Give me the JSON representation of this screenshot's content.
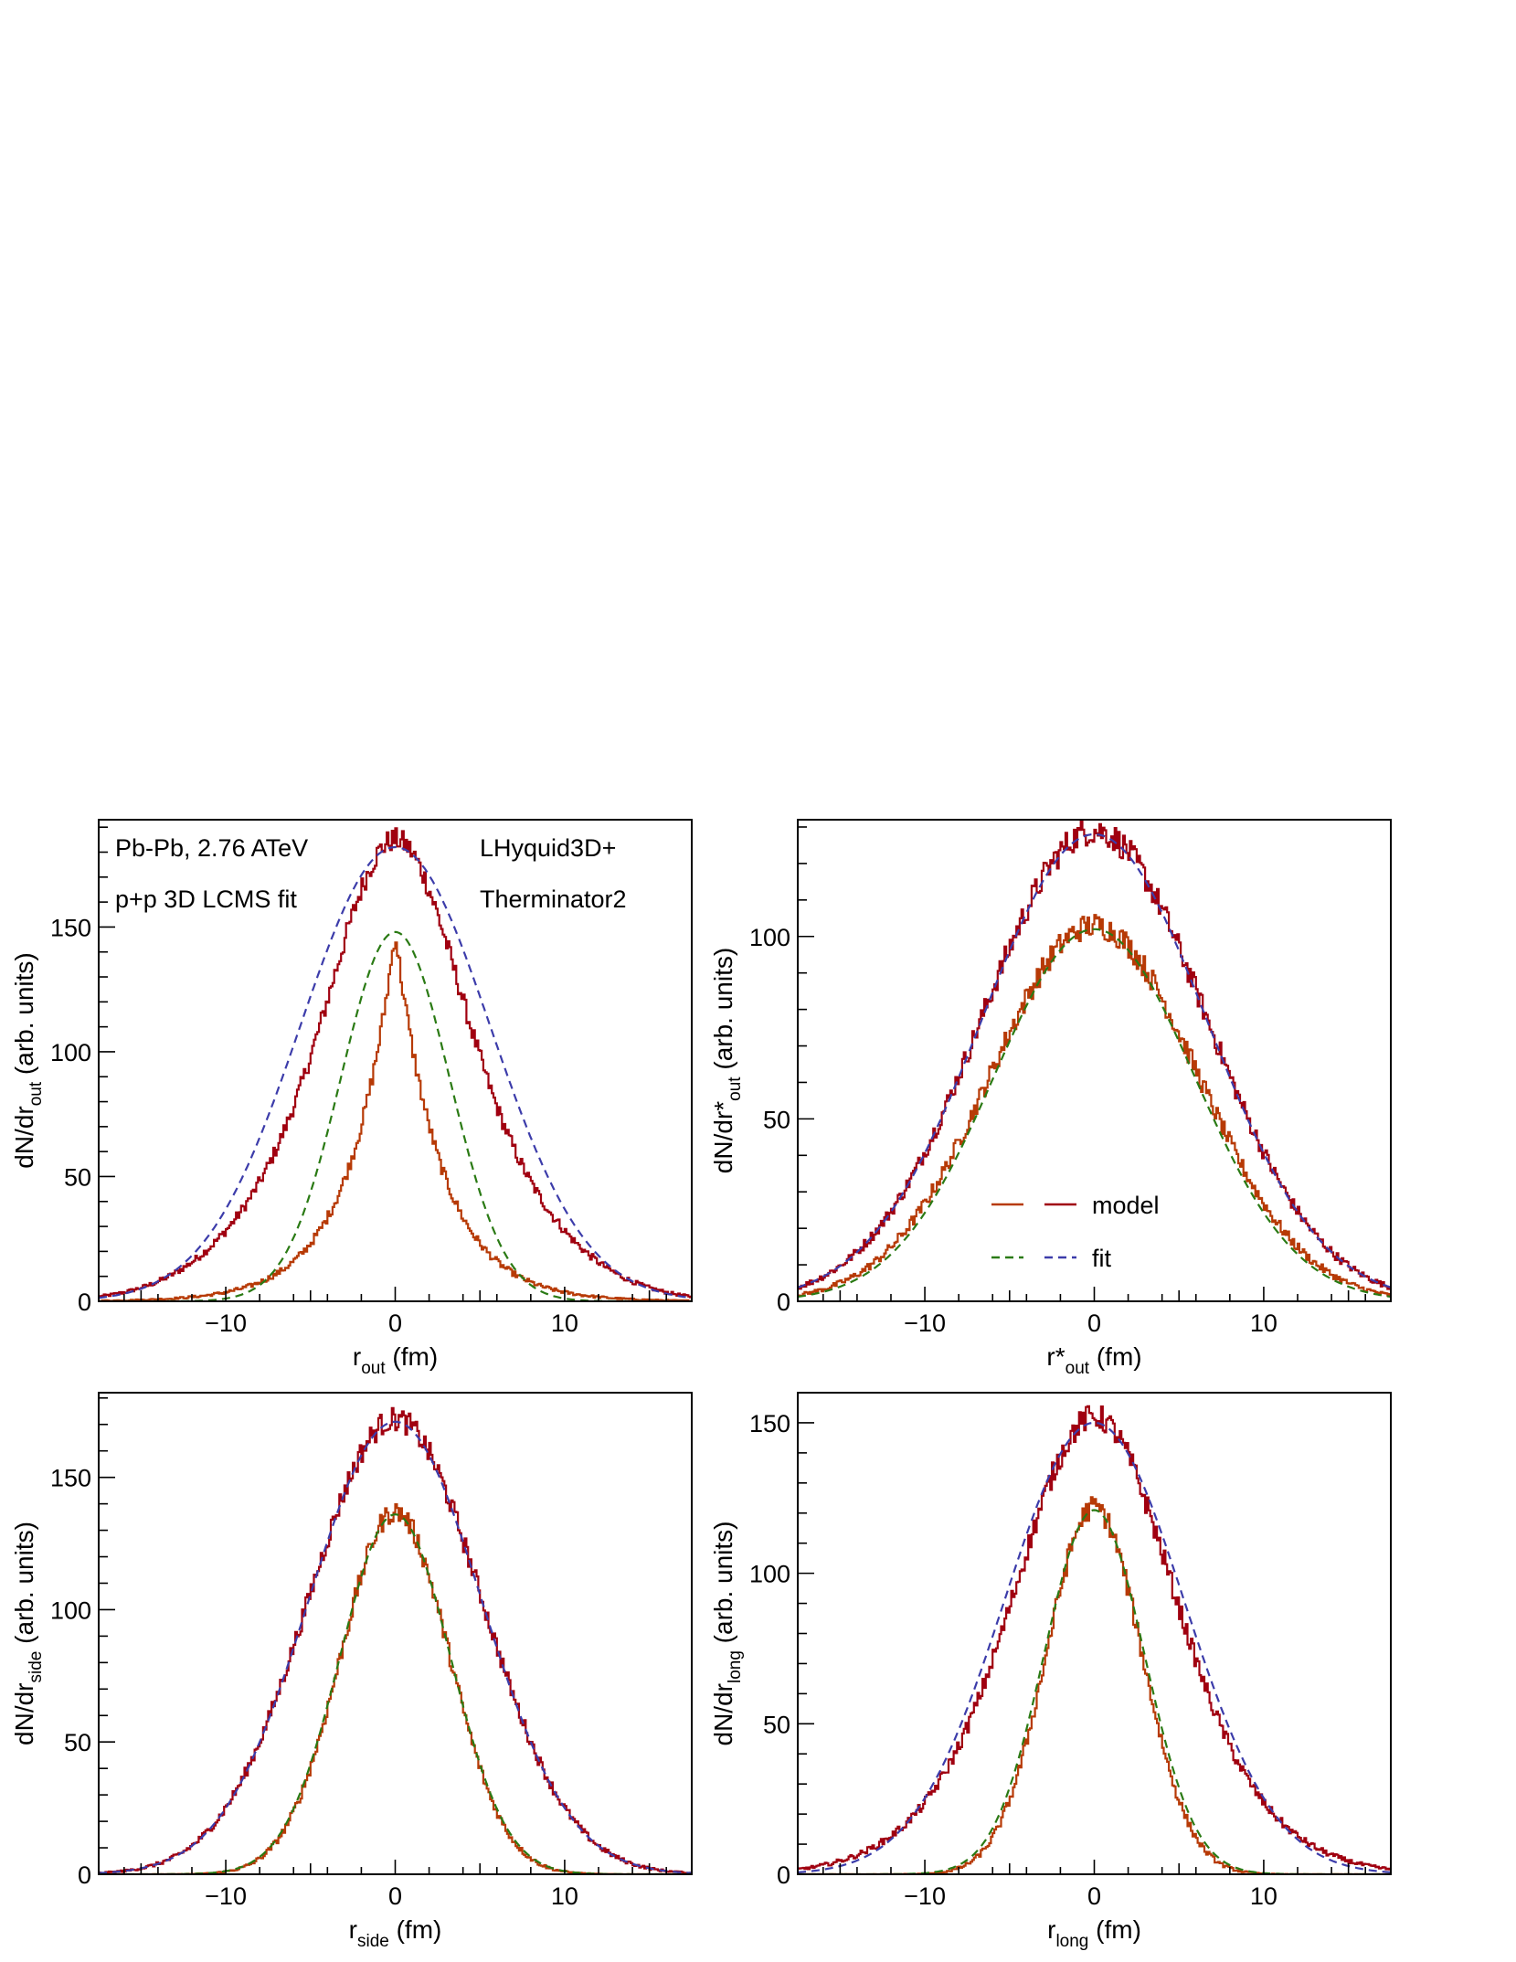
{
  "colors": {
    "model_wide": "#a00010",
    "model_narrow": "#b73a06",
    "fit_wide": "#3c3caa",
    "fit_narrow": "#2a7a14",
    "frame": "#000000"
  },
  "annotations": {
    "system": "Pb-Pb, 2.76 ATeV",
    "fit_label": "p+p 3D LCMS fit",
    "model_line1": "LHyquid3D+",
    "model_line2": "Therminator2"
  },
  "legend": {
    "placement": "center-right",
    "entries": [
      {
        "label": "model",
        "style": "solid"
      },
      {
        "label": "fit",
        "style": "dashed"
      }
    ]
  },
  "chart_data": [
    {
      "type": "line",
      "xlabel": {
        "main": "r",
        "sub": "out",
        "tail": " (fm)"
      },
      "ylabel": {
        "main": "dN/dr",
        "sub": "out",
        "tail": " (arb. units)"
      },
      "xlim": [
        -17.5,
        17.5
      ],
      "ylim": [
        0,
        193
      ],
      "xticks": [
        -10,
        0,
        10
      ],
      "xtick_labels": [
        "−10",
        "0",
        "10"
      ],
      "yticks": [
        0,
        50,
        100,
        150
      ],
      "ytick_labels": [
        "0",
        "50",
        "100",
        "150"
      ],
      "grid": false,
      "series": [
        {
          "name": "model",
          "role": "model_wide",
          "shape": "core-halo",
          "amp": 185,
          "peak_x": 0,
          "sigma_core": 3.2,
          "sigma_halo": 6.2,
          "halo_frac": 0.55
        },
        {
          "name": "model",
          "role": "model_narrow",
          "shape": "exponential",
          "amp": 148,
          "peak_x": 0,
          "scale": 2.7
        },
        {
          "name": "fit",
          "role": "fit_wide",
          "shape": "gaussian",
          "amp": 182,
          "peak_x": 0,
          "sigma": 5.6
        },
        {
          "name": "fit",
          "role": "fit_narrow",
          "shape": "gaussian",
          "amp": 148,
          "peak_x": 0,
          "sigma": 3.2
        }
      ]
    },
    {
      "type": "line",
      "xlabel": {
        "main": "r*",
        "sub": "out",
        "tail": " (fm)"
      },
      "ylabel": {
        "main": "dN/dr*",
        "sub": "out",
        "tail": " (arb. units)"
      },
      "xlim": [
        -17.5,
        17.5
      ],
      "ylim": [
        0,
        132
      ],
      "xticks": [
        -10,
        0,
        10
      ],
      "xtick_labels": [
        "−10",
        "0",
        "10"
      ],
      "yticks": [
        0,
        50,
        100
      ],
      "ytick_labels": [
        "0",
        "50",
        "100"
      ],
      "grid": false,
      "series": [
        {
          "name": "model",
          "role": "model_wide",
          "shape": "gaussian",
          "amp": 129,
          "peak_x": 0,
          "sigma": 6.6
        },
        {
          "name": "model",
          "role": "model_narrow",
          "shape": "gaussian",
          "amp": 103,
          "peak_x": 0,
          "sigma": 6.1
        },
        {
          "name": "fit",
          "role": "fit_wide",
          "shape": "gaussian",
          "amp": 128,
          "peak_x": 0,
          "sigma": 6.6
        },
        {
          "name": "fit",
          "role": "fit_narrow",
          "shape": "gaussian",
          "amp": 102,
          "peak_x": 0,
          "sigma": 5.9
        }
      ]
    },
    {
      "type": "line",
      "xlabel": {
        "main": "r",
        "sub": "side",
        "tail": " (fm)"
      },
      "ylabel": {
        "main": "dN/dr",
        "sub": "side",
        "tail": " (arb. units)"
      },
      "xlim": [
        -17.5,
        17.5
      ],
      "ylim": [
        0,
        182
      ],
      "xticks": [
        -10,
        0,
        10
      ],
      "xtick_labels": [
        "−10",
        "0",
        "10"
      ],
      "yticks": [
        0,
        50,
        100,
        150
      ],
      "ytick_labels": [
        "0",
        "50",
        "100",
        "150"
      ],
      "grid": false,
      "series": [
        {
          "name": "model",
          "role": "model_wide",
          "shape": "gaussian",
          "amp": 172,
          "peak_x": 0,
          "sigma": 5.1
        },
        {
          "name": "model",
          "role": "model_narrow",
          "shape": "gaussian",
          "amp": 137,
          "peak_x": 0,
          "sigma": 3.2
        },
        {
          "name": "fit",
          "role": "fit_wide",
          "shape": "gaussian",
          "amp": 171,
          "peak_x": 0,
          "sigma": 5.1
        },
        {
          "name": "fit",
          "role": "fit_narrow",
          "shape": "gaussian",
          "amp": 136,
          "peak_x": 0,
          "sigma": 3.25
        }
      ]
    },
    {
      "type": "line",
      "xlabel": {
        "main": "r",
        "sub": "long",
        "tail": " (fm)"
      },
      "ylabel": {
        "main": "dN/dr",
        "sub": "long",
        "tail": " (arb. units)"
      },
      "xlim": [
        -17.5,
        17.5
      ],
      "ylim": [
        0,
        160
      ],
      "xticks": [
        -10,
        0,
        10
      ],
      "xtick_labels": [
        "−10",
        "0",
        "10"
      ],
      "yticks": [
        0,
        50,
        100,
        150
      ],
      "ytick_labels": [
        "0",
        "50",
        "100",
        "150"
      ],
      "grid": false,
      "series": [
        {
          "name": "model",
          "role": "model_wide",
          "shape": "core-halo",
          "amp": 152,
          "peak_x": 0,
          "sigma_core": 4.0,
          "sigma_halo": 6.4,
          "halo_frac": 0.45
        },
        {
          "name": "model",
          "role": "model_narrow",
          "shape": "gaussian",
          "amp": 122,
          "peak_x": 0,
          "sigma": 2.8
        },
        {
          "name": "fit",
          "role": "fit_wide",
          "shape": "gaussian",
          "amp": 150,
          "peak_x": 0,
          "sigma": 5.3
        },
        {
          "name": "fit",
          "role": "fit_narrow",
          "shape": "gaussian",
          "amp": 121,
          "peak_x": 0,
          "sigma": 2.95
        }
      ]
    }
  ]
}
